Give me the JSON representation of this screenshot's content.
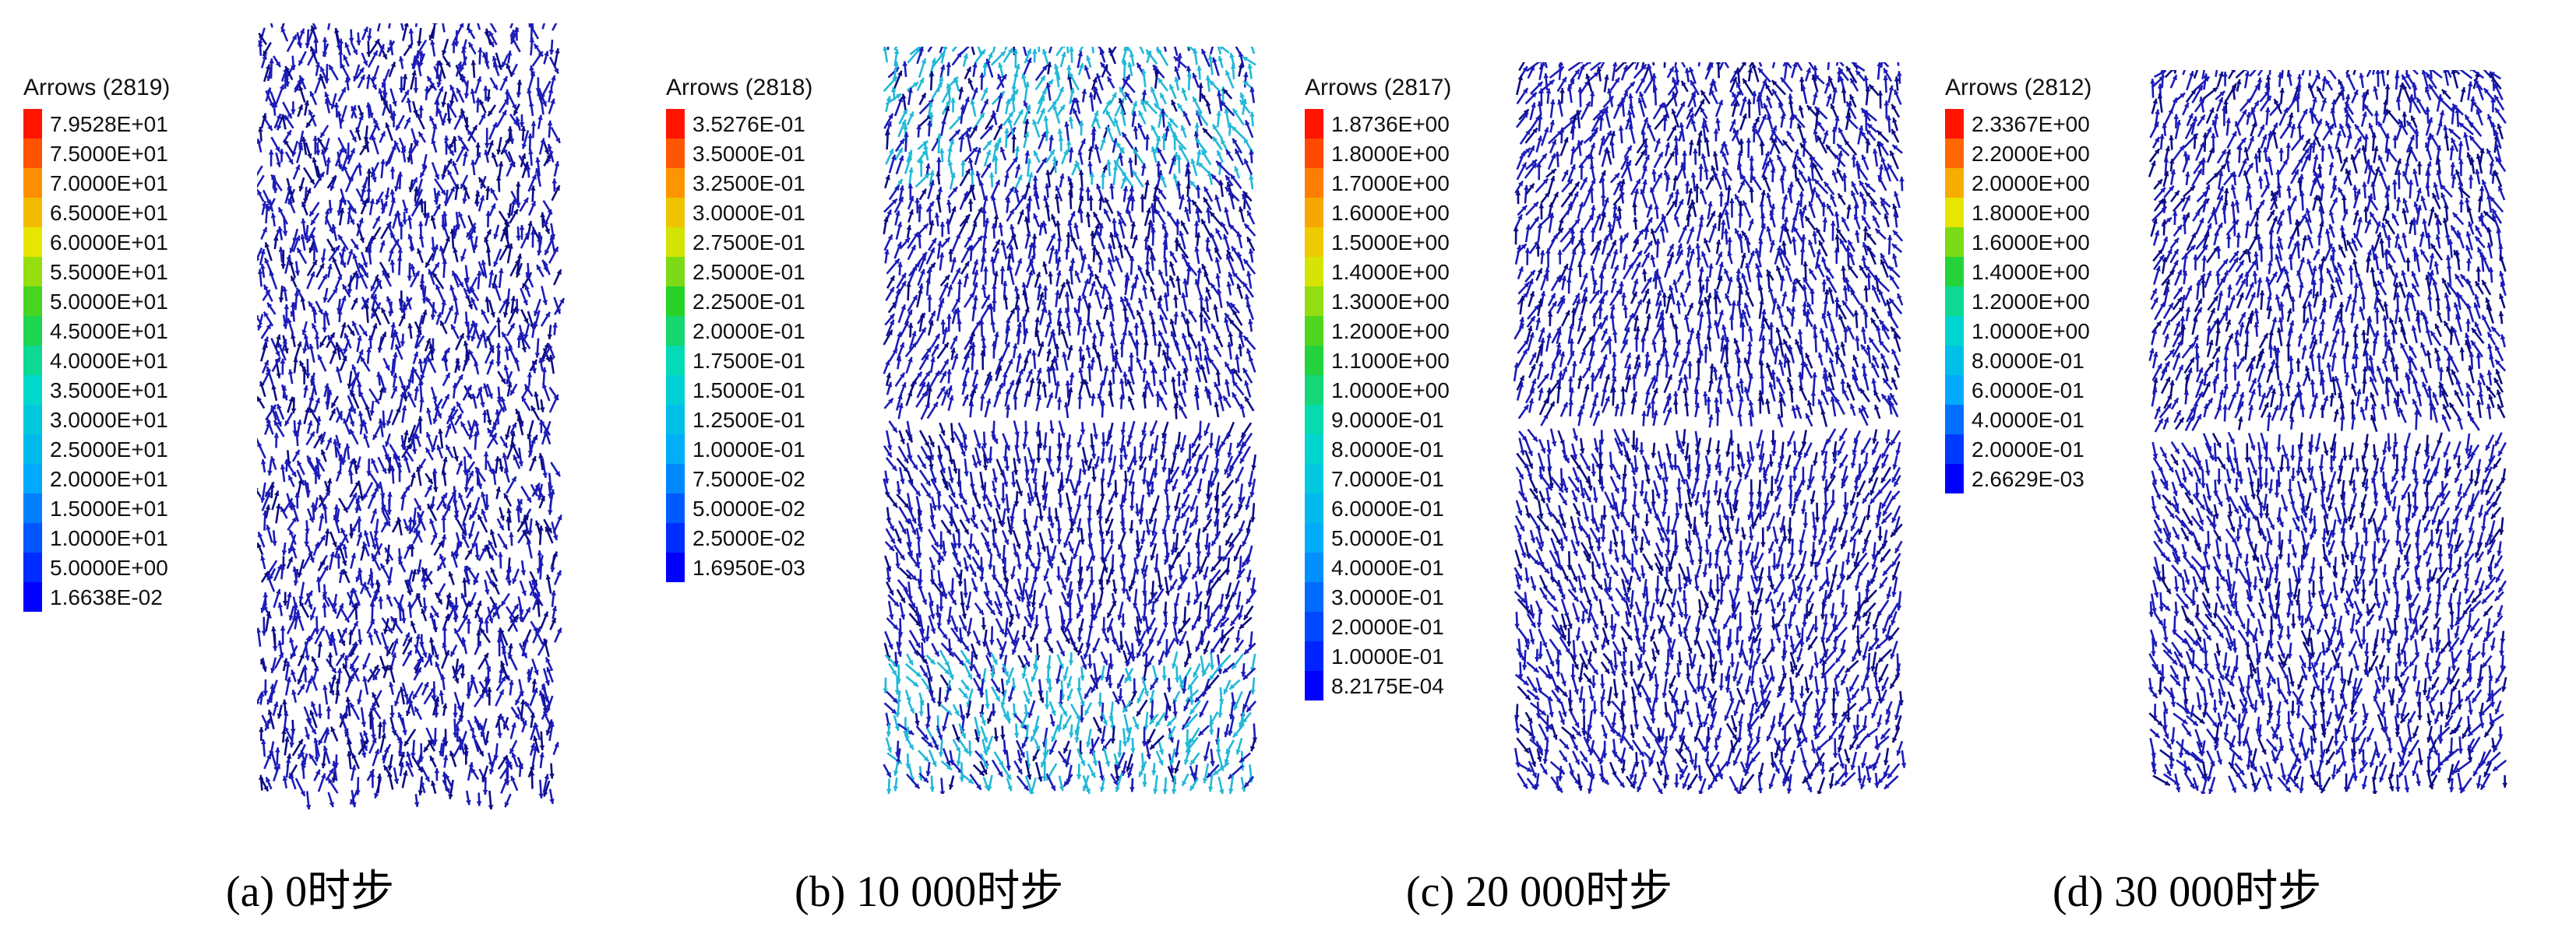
{
  "panels": [
    {
      "id": "a",
      "legend_title": "Arrows (2819)",
      "legend_values": [
        "7.9528E+01",
        "7.5000E+01",
        "7.0000E+01",
        "6.5000E+01",
        "6.0000E+01",
        "5.5000E+01",
        "5.0000E+01",
        "4.5000E+01",
        "4.0000E+01",
        "3.5000E+01",
        "3.0000E+01",
        "2.5000E+01",
        "2.0000E+01",
        "1.5000E+01",
        "1.0000E+01",
        "5.0000E+00",
        "1.6638E-02"
      ],
      "caption": "(a) 0时步",
      "field_shade": "uniform-blue"
    },
    {
      "id": "b",
      "legend_title": "Arrows (2818)",
      "legend_values": [
        "3.5276E-01",
        "3.5000E-01",
        "3.2500E-01",
        "3.0000E-01",
        "2.7500E-01",
        "2.5000E-01",
        "2.2500E-01",
        "2.0000E-01",
        "1.7500E-01",
        "1.5000E-01",
        "1.2500E-01",
        "1.0000E-01",
        "7.5000E-02",
        "5.0000E-02",
        "2.5000E-02",
        "1.6950E-03"
      ],
      "caption": "(b) 10 000时步",
      "field_shade": "cyan-ends"
    },
    {
      "id": "c",
      "legend_title": "Arrows (2817)",
      "legend_values": [
        "1.8736E+00",
        "1.8000E+00",
        "1.7000E+00",
        "1.6000E+00",
        "1.5000E+00",
        "1.4000E+00",
        "1.3000E+00",
        "1.2000E+00",
        "1.1000E+00",
        "1.0000E+00",
        "9.0000E-01",
        "8.0000E-01",
        "7.0000E-01",
        "6.0000E-01",
        "5.0000E-01",
        "4.0000E-01",
        "3.0000E-01",
        "2.0000E-01",
        "1.0000E-01",
        "8.2175E-04"
      ],
      "caption": "(c) 20 000时步",
      "field_shade": "uniform-blue"
    },
    {
      "id": "d",
      "legend_title": "Arrows (2812)",
      "legend_values": [
        "2.3367E+00",
        "2.2000E+00",
        "2.0000E+00",
        "1.8000E+00",
        "1.6000E+00",
        "1.4000E+00",
        "1.2000E+00",
        "1.0000E+00",
        "8.0000E-01",
        "6.0000E-01",
        "4.0000E-01",
        "2.0000E-01",
        "2.6629E-03"
      ],
      "caption": "(d) 30 000时步",
      "field_shade": "uniform-blue"
    }
  ],
  "colors": {
    "arrow_main": "#1c1cb8",
    "arrow_dark": "#0d0d80",
    "arrow_cyan": "#22b8d8",
    "legend_top": "#ff1a00",
    "legend_bottom": "#0000ff"
  }
}
